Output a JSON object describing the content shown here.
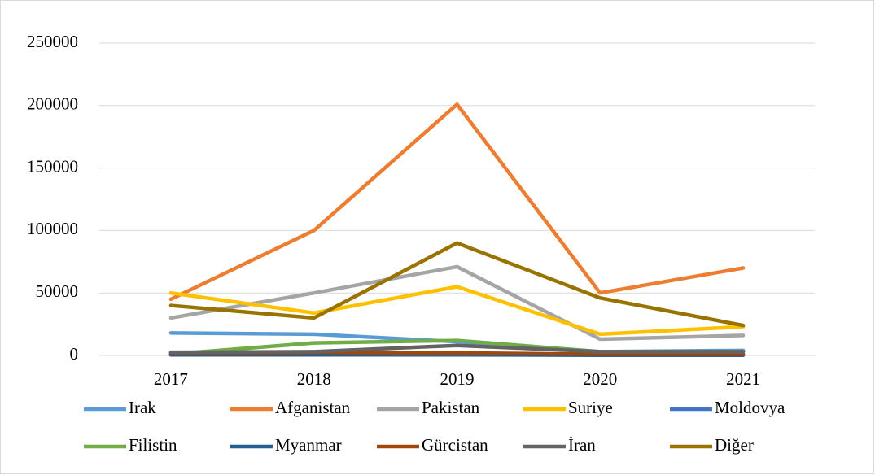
{
  "chart_data": {
    "type": "line",
    "categories": [
      "2017",
      "2018",
      "2019",
      "2020",
      "2021"
    ],
    "series": [
      {
        "name": "Irak",
        "color": "#5b9bd5",
        "values": [
          18000,
          17000,
          11000,
          3000,
          4000
        ]
      },
      {
        "name": "Afganistan",
        "color": "#ed7d31",
        "values": [
          45000,
          100000,
          201000,
          50000,
          70000
        ]
      },
      {
        "name": "Pakistan",
        "color": "#a5a5a5",
        "values": [
          30000,
          50000,
          71000,
          13000,
          16000
        ]
      },
      {
        "name": "Suriye",
        "color": "#ffc000",
        "values": [
          50000,
          34000,
          55000,
          17000,
          23000
        ]
      },
      {
        "name": "Moldovya",
        "color": "#4472c4",
        "values": [
          500,
          500,
          500,
          500,
          500
        ]
      },
      {
        "name": "Filistin",
        "color": "#70ad47",
        "values": [
          1000,
          10000,
          12000,
          3000,
          3000
        ]
      },
      {
        "name": "Myanmar",
        "color": "#255e91",
        "values": [
          500,
          500,
          500,
          200,
          200
        ]
      },
      {
        "name": "Gürcistan",
        "color": "#9e480e",
        "values": [
          1500,
          2500,
          2000,
          1000,
          1000
        ]
      },
      {
        "name": "İran",
        "color": "#636363",
        "values": [
          2500,
          3000,
          8000,
          3000,
          3000
        ]
      },
      {
        "name": "Diğer",
        "color": "#997300",
        "values": [
          40000,
          30000,
          90000,
          46000,
          24000
        ]
      }
    ],
    "ylim": [
      0,
      250000
    ],
    "yticks": [
      0,
      50000,
      100000,
      150000,
      200000,
      250000
    ],
    "grid": true
  }
}
